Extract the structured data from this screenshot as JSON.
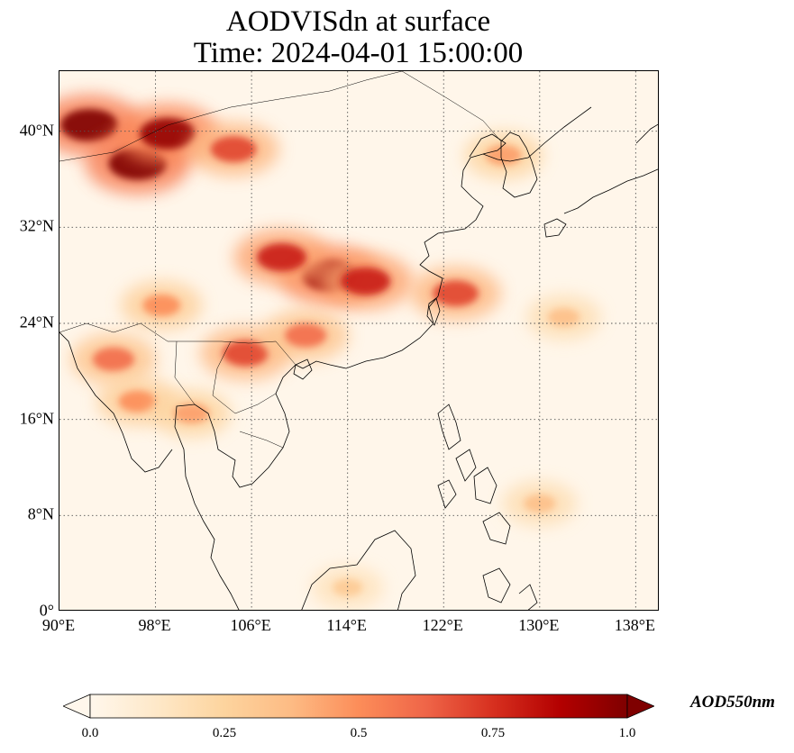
{
  "title": {
    "line1": "AODVISdn at surface",
    "line2": "Time: 2024-04-01 15:00:00"
  },
  "map": {
    "projection": "PlateCarree",
    "extent": {
      "lon": [
        90,
        140
      ],
      "lat": [
        0,
        45
      ]
    },
    "gridlines": "dotted",
    "lat_ticks": [
      {
        "value": 40,
        "label": "40°N"
      },
      {
        "value": 32,
        "label": "32°N"
      },
      {
        "value": 24,
        "label": "24°N"
      },
      {
        "value": 16,
        "label": "16°N"
      },
      {
        "value": 8,
        "label": "8°N"
      },
      {
        "value": 0,
        "label": "0°"
      }
    ],
    "lon_ticks": [
      {
        "value": 90,
        "label": "90°E"
      },
      {
        "value": 98,
        "label": "98°E"
      },
      {
        "value": 106,
        "label": "106°E"
      },
      {
        "value": 114,
        "label": "114°E"
      },
      {
        "value": 122,
        "label": "122°E"
      },
      {
        "value": 130,
        "label": "130°E"
      },
      {
        "value": 138,
        "label": "138°E"
      }
    ],
    "field_hotspots": [
      {
        "region": "north-west dust plume",
        "lon": 92.5,
        "lat": 40.5,
        "aod": 1.0
      },
      {
        "region": "north-west dust plume",
        "lon": 96.5,
        "lat": 37.3,
        "aod": 1.0
      },
      {
        "region": "north-west dust plume",
        "lon": 99.0,
        "lat": 39.8,
        "aod": 0.95
      },
      {
        "region": "central china",
        "lon": 112.5,
        "lat": 28.0,
        "aod": 0.95
      },
      {
        "region": "central china",
        "lon": 108.5,
        "lat": 29.5,
        "aod": 0.8
      },
      {
        "region": "central china",
        "lon": 115.5,
        "lat": 27.5,
        "aod": 0.8
      },
      {
        "region": "east china sea",
        "lon": 123.0,
        "lat": 26.5,
        "aod": 0.7
      },
      {
        "region": "shanxi",
        "lon": 104.5,
        "lat": 38.5,
        "aod": 0.7
      },
      {
        "region": "northern vietnam",
        "lon": 105.5,
        "lat": 21.5,
        "aod": 0.7
      },
      {
        "region": "south china",
        "lon": 110.5,
        "lat": 23.0,
        "aod": 0.6
      },
      {
        "region": "myanmar",
        "lon": 94.5,
        "lat": 21.0,
        "aod": 0.6
      },
      {
        "region": "myanmar",
        "lon": 96.5,
        "lat": 17.5,
        "aod": 0.5
      },
      {
        "region": "thailand",
        "lon": 101.0,
        "lat": 16.5,
        "aod": 0.45
      },
      {
        "region": "yunnan",
        "lon": 98.5,
        "lat": 25.5,
        "aod": 0.5
      },
      {
        "region": "korea",
        "lon": 127.0,
        "lat": 38.0,
        "aod": 0.45
      },
      {
        "region": "pacific",
        "lon": 132.0,
        "lat": 24.5,
        "aod": 0.35
      },
      {
        "region": "philippines",
        "lon": 130.0,
        "lat": 9.0,
        "aod": 0.35
      },
      {
        "region": "southern borneo",
        "lon": 114.0,
        "lat": 2.0,
        "aod": 0.3
      }
    ]
  },
  "colorbar": {
    "label": "AOD550nm",
    "min": 0.0,
    "max": 1.0,
    "colormap": "OrRd",
    "extend": "both",
    "ticks": [
      {
        "value": 0.0,
        "label": "0.0"
      },
      {
        "value": 0.25,
        "label": "0.25"
      },
      {
        "value": 0.5,
        "label": "0.5"
      },
      {
        "value": 0.75,
        "label": "0.75"
      },
      {
        "value": 1.0,
        "label": "1.0"
      }
    ]
  }
}
